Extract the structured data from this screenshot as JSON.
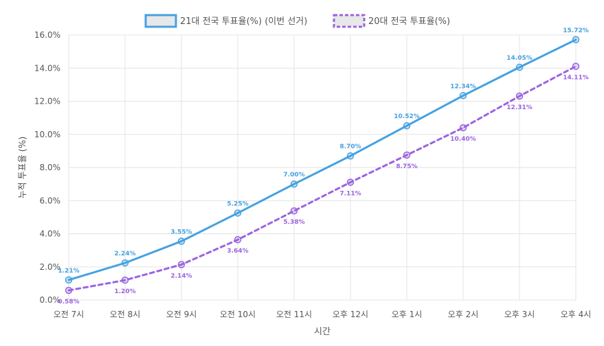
{
  "chart_data": {
    "type": "line",
    "categories": [
      "오전 7시",
      "오전 8시",
      "오전 9시",
      "오전 10시",
      "오전 11시",
      "오후 12시",
      "오후 1시",
      "오후 2시",
      "오후 3시",
      "오후 4시"
    ],
    "series": [
      {
        "name": "21대 전국 투표율(%) (이번 선거)",
        "values": [
          1.21,
          2.24,
          3.55,
          5.25,
          7.0,
          8.7,
          10.52,
          12.34,
          14.05,
          15.72
        ],
        "labels": [
          "1.21%",
          "2.24%",
          "3.55%",
          "5.25%",
          "7.00%",
          "8.70%",
          "10.52%",
          "12.34%",
          "14.05%",
          "15.72%"
        ],
        "color": "#45a1e0",
        "style": "solid",
        "label_position": "above"
      },
      {
        "name": "20대 전국 투표율(%)",
        "values": [
          0.58,
          1.2,
          2.14,
          3.64,
          5.38,
          7.11,
          8.75,
          10.4,
          12.31,
          14.11
        ],
        "labels": [
          "0.58%",
          "1.20%",
          "2.14%",
          "3.64%",
          "5.38%",
          "7.11%",
          "8.75%",
          "10.40%",
          "12.31%",
          "14.11%"
        ],
        "color": "#9b63e0",
        "style": "dashed",
        "label_position": "below"
      }
    ],
    "xlabel": "시간",
    "ylabel": "누적 투표율 (%)",
    "ylim": [
      0,
      16
    ],
    "yticks": [
      "0.0%",
      "2.0%",
      "4.0%",
      "6.0%",
      "8.0%",
      "10.0%",
      "12.0%",
      "14.0%",
      "16.0%"
    ],
    "grid": true,
    "legend_position": "top"
  }
}
